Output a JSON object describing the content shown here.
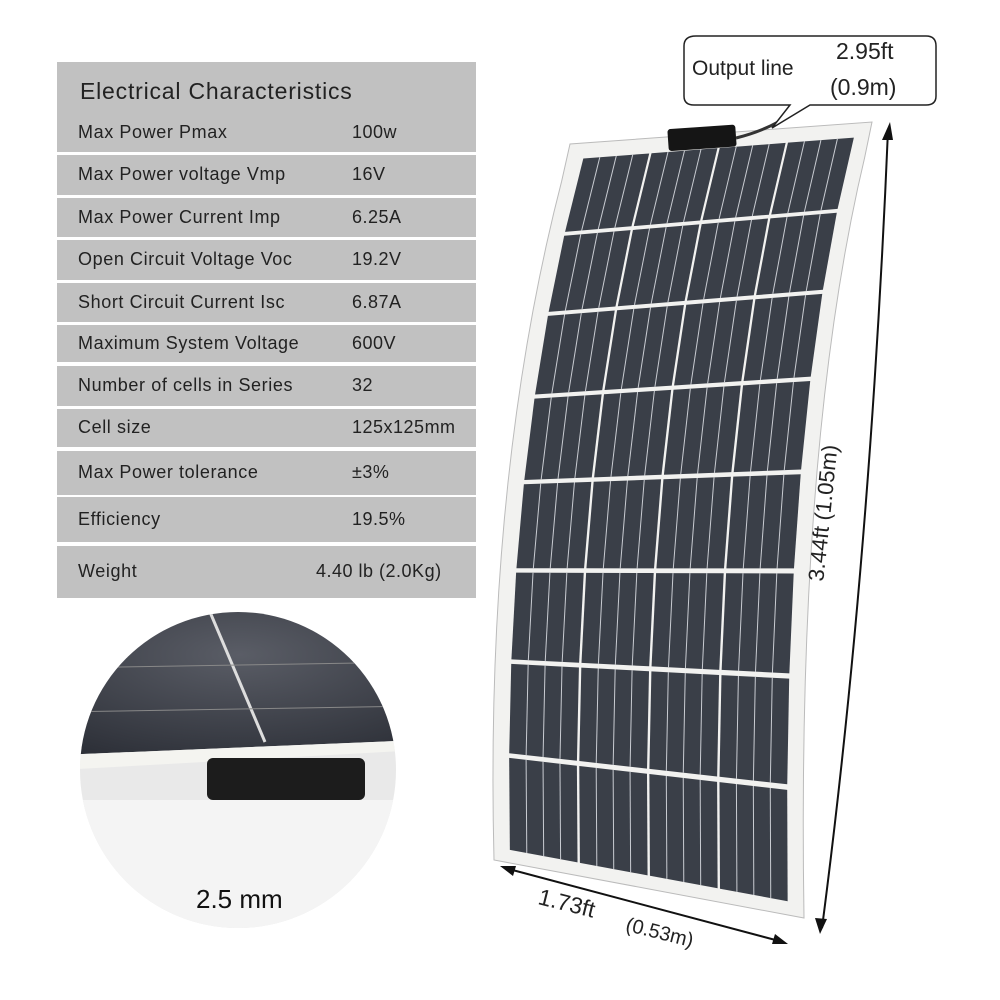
{
  "spec_table": {
    "title": "Electrical Characteristics",
    "rows": [
      {
        "label": "Max Power Pmax",
        "value": "100w"
      },
      {
        "label": "Max Power voltage Vmp",
        "value": "16V"
      },
      {
        "label": "Max Power Current Imp",
        "value": "6.25A"
      },
      {
        "label": "Open Circuit Voltage  Voc",
        "value": "19.2V"
      },
      {
        "label": "Short Circuit Current  Isc",
        "value": "6.87A"
      },
      {
        "label": "Maximum System Voltage",
        "value": "600V"
      },
      {
        "label": "Number of cells in Series",
        "value": "32"
      },
      {
        "label": "Cell size",
        "value": "125x125mm"
      },
      {
        "label": "Max Power tolerance",
        "value": "±3%"
      },
      {
        "label": "Efficiency",
        "value": "19.5%"
      },
      {
        "label": "Weight",
        "value": "4.40 lb (2.0Kg)"
      }
    ]
  },
  "callout": {
    "label": "Output line",
    "length_ft": "2.95ft",
    "length_m": "(0.9m)"
  },
  "dimensions": {
    "height": "3.44ft  (1.05m)",
    "width_ft": "1.73ft",
    "width_m": "(0.53m)"
  },
  "thickness_inset": {
    "label": "2.5 mm"
  },
  "colors": {
    "table_bg": "#c1c1c1",
    "panel_cell": "#3a3f48",
    "panel_frame": "#f2f2f0"
  }
}
